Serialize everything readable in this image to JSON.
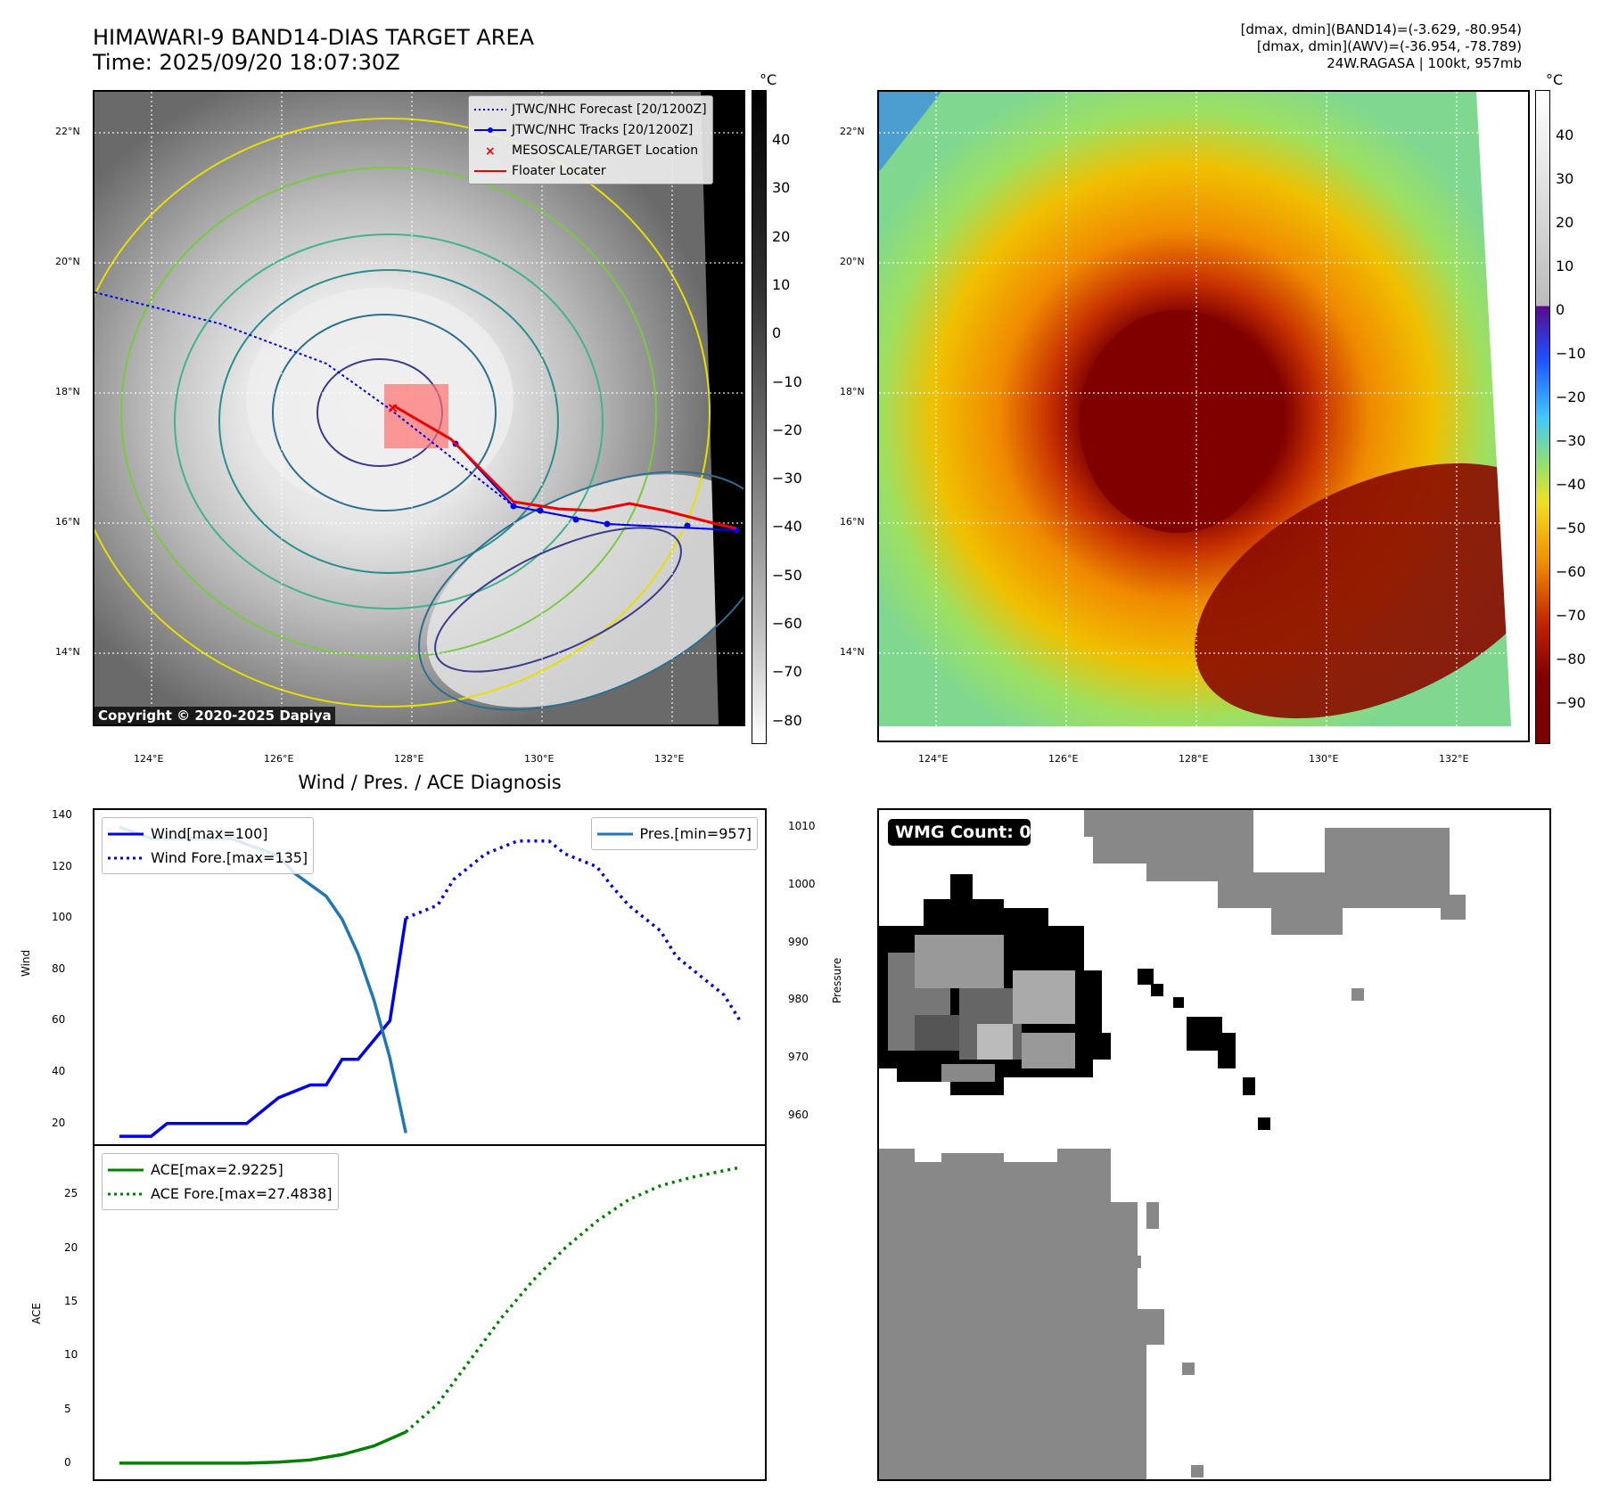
{
  "header": {
    "title_line1": "HIMAWARI-9 BAND14-DIAS TARGET AREA",
    "title_line2": "Time: 2025/09/20 18:07:30Z",
    "info_line1": "[dmax, dmin](BAND14)=(-3.629, -80.954)",
    "info_line2": "[dmax, dmin](AWV)=(-36.954, -78.789)",
    "info_line3": "24W.RAGASA | 100kt, 957mb"
  },
  "map_top_left": {
    "lat_labels": [
      "22°N",
      "20°N",
      "18°N",
      "16°N",
      "14°N"
    ],
    "lon_labels": [
      "124°E",
      "126°E",
      "128°E",
      "130°E",
      "132°E"
    ],
    "legend": {
      "forecast": "JTWC/NHC Forecast [20/1200Z]",
      "tracks": "JTWC/NHC Tracks [20/1200Z]",
      "target": "MESOSCALE/TARGET Location",
      "floater": "Floater Locater"
    },
    "copyright": "Copyright © 2020-2025 Dapiya",
    "colorbar_unit": "°C",
    "colorbar_ticks": [
      "40",
      "30",
      "20",
      "10",
      "0",
      "−10",
      "−20",
      "−30",
      "−40",
      "−50",
      "−60",
      "−70",
      "−80"
    ]
  },
  "map_top_right": {
    "lat_labels": [
      "22°N",
      "20°N",
      "18°N",
      "16°N",
      "14°N"
    ],
    "lon_labels": [
      "124°E",
      "126°E",
      "128°E",
      "130°E",
      "132°E"
    ],
    "colorbar_unit": "°C",
    "colorbar_ticks": [
      "40",
      "30",
      "20",
      "10",
      "0",
      "−10",
      "−20",
      "−30",
      "−40",
      "−50",
      "−60",
      "−70",
      "−80",
      "−90"
    ]
  },
  "wmg_panel": {
    "badge": "WMG Count: 0"
  },
  "chart_data": [
    {
      "type": "line",
      "title": "Wind / Pres. / ACE Diagnosis",
      "ylabel": "Wind",
      "ylabel_right": "Pressure",
      "ylim": [
        14,
        140
      ],
      "ylim_right": [
        956,
        1012
      ],
      "yticks": [
        "20",
        "40",
        "60",
        "80",
        "100",
        "120",
        "140"
      ],
      "yticks_right": [
        "960",
        "970",
        "980",
        "990",
        "1000",
        "1010"
      ],
      "legend_left": [
        "Wind[max=100]",
        "Wind Fore.[max=135]"
      ],
      "legend_right": [
        "Pres.[min=957]"
      ],
      "series": [
        {
          "name": "Wind[max=100]",
          "style": "solid",
          "color": "#0000ee",
          "x": [
            0,
            2,
            3,
            5,
            7,
            8,
            10,
            12,
            13,
            14,
            15,
            17,
            18
          ],
          "values": [
            15,
            15,
            20,
            20,
            20,
            20,
            30,
            35,
            35,
            45,
            45,
            60,
            100
          ]
        },
        {
          "name": "Wind Fore.[max=135]",
          "style": "dotted",
          "color": "#0000ee",
          "x": [
            18,
            20,
            21,
            23,
            25,
            27,
            28,
            30,
            31,
            32,
            34,
            35,
            37,
            38,
            39
          ],
          "values": [
            100,
            105,
            115,
            125,
            130,
            130,
            125,
            120,
            112,
            105,
            95,
            85,
            75,
            70,
            60
          ]
        },
        {
          "name": "Pres.[min=957]",
          "style": "solid",
          "color": "#1f77b4",
          "axis": "right",
          "x": [
            0,
            1,
            2,
            3,
            4,
            5,
            6,
            7,
            8,
            9,
            10,
            11,
            12,
            13,
            14,
            15,
            16,
            17,
            18
          ],
          "values": [
            1010,
            1009,
            1008,
            1008,
            1008,
            1008,
            1008,
            1008,
            1007,
            1006,
            1005,
            1002,
            1000,
            998,
            994,
            988,
            980,
            970,
            957
          ]
        }
      ]
    },
    {
      "type": "line",
      "ylabel": "ACE",
      "ylim": [
        -1,
        29
      ],
      "yticks": [
        "0",
        "5",
        "10",
        "15",
        "20",
        "25"
      ],
      "legend": [
        "ACE[max=2.9225]",
        "ACE Fore.[max=27.4838]"
      ],
      "series": [
        {
          "name": "ACE[max=2.9225]",
          "style": "solid",
          "color": "#008000",
          "x": [
            0,
            4,
            8,
            10,
            12,
            14,
            16,
            18
          ],
          "values": [
            0,
            0,
            0,
            0.1,
            0.3,
            0.8,
            1.6,
            2.9
          ]
        },
        {
          "name": "ACE Fore.[max=27.4838]",
          "style": "dotted",
          "color": "#008000",
          "x": [
            18,
            20,
            22,
            24,
            26,
            28,
            30,
            32,
            34,
            36,
            38,
            39
          ],
          "values": [
            2.9,
            5.5,
            9.5,
            13.5,
            17.0,
            20.0,
            22.5,
            24.5,
            25.8,
            26.6,
            27.2,
            27.5
          ]
        }
      ]
    }
  ]
}
